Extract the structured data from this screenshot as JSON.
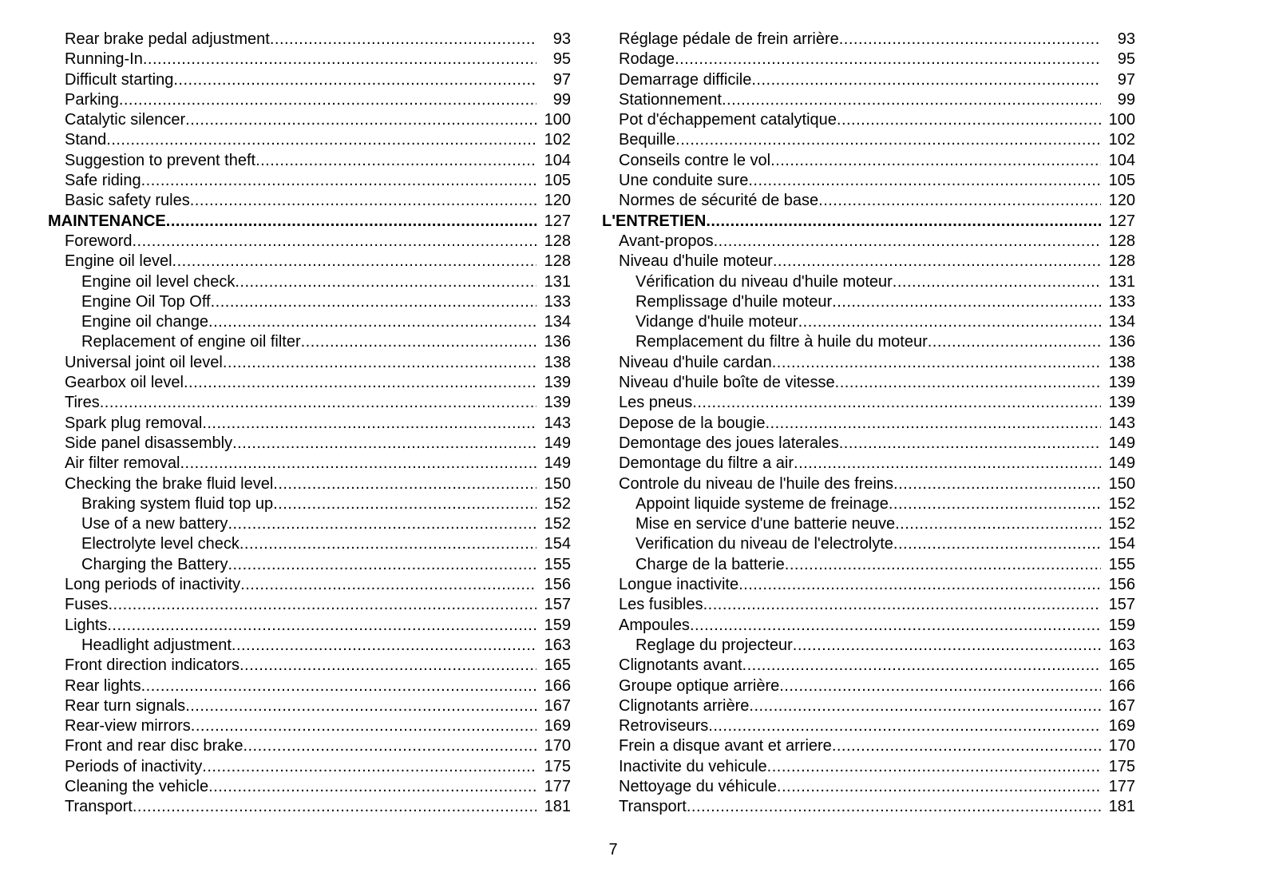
{
  "toc_en": [
    [
      1,
      "Rear brake pedal adjustment",
      "93"
    ],
    [
      1,
      "Running-In",
      "95"
    ],
    [
      1,
      "Difficult starting",
      "97"
    ],
    [
      1,
      "Parking",
      "99"
    ],
    [
      1,
      "Catalytic silencer",
      "100"
    ],
    [
      1,
      "Stand",
      "102"
    ],
    [
      1,
      "Suggestion to prevent theft",
      "104"
    ],
    [
      1,
      "Safe riding",
      "105"
    ],
    [
      1,
      "Basic safety rules",
      "120"
    ],
    [
      0,
      "MAINTENANCE",
      "127"
    ],
    [
      1,
      "Foreword",
      "128"
    ],
    [
      1,
      "Engine oil level",
      "128"
    ],
    [
      2,
      "Engine oil level check",
      "131"
    ],
    [
      2,
      "Engine Oil Top Off",
      "133"
    ],
    [
      2,
      "Engine oil change",
      "134"
    ],
    [
      2,
      "Replacement of engine oil filter",
      "136"
    ],
    [
      1,
      "Universal joint oil level",
      "138"
    ],
    [
      1,
      "Gearbox oil level",
      "139"
    ],
    [
      1,
      "Tires",
      "139"
    ],
    [
      1,
      "Spark plug removal",
      "143"
    ],
    [
      1,
      "Side panel disassembly",
      "149"
    ],
    [
      1,
      "Air filter removal",
      "149"
    ],
    [
      1,
      "Checking the brake fluid level",
      "150"
    ],
    [
      2,
      "Braking system fluid top up",
      "152"
    ],
    [
      2,
      "Use of a new battery",
      "152"
    ],
    [
      2,
      "Electrolyte level check",
      "154"
    ],
    [
      2,
      "Charging the Battery",
      "155"
    ],
    [
      1,
      "Long periods of inactivity",
      "156"
    ],
    [
      1,
      "Fuses",
      "157"
    ],
    [
      1,
      "Lights",
      "159"
    ],
    [
      2,
      "Headlight adjustment",
      "163"
    ],
    [
      1,
      "Front direction indicators",
      "165"
    ],
    [
      1,
      "Rear lights",
      "166"
    ],
    [
      1,
      "Rear turn signals",
      "167"
    ],
    [
      1,
      "Rear-view mirrors",
      "169"
    ],
    [
      1,
      "Front and rear disc brake",
      "170"
    ],
    [
      1,
      "Periods of inactivity",
      "175"
    ],
    [
      1,
      "Cleaning the vehicle",
      "177"
    ],
    [
      1,
      "Transport",
      "181"
    ]
  ],
  "toc_fr": [
    [
      1,
      "Réglage pédale de frein arrière",
      "93"
    ],
    [
      1,
      "Rodage",
      "95"
    ],
    [
      1,
      "Demarrage difficile",
      "97"
    ],
    [
      1,
      "Stationnement",
      "99"
    ],
    [
      1,
      "Pot d'échappement catalytique",
      "100"
    ],
    [
      1,
      "Bequille",
      "102"
    ],
    [
      1,
      "Conseils contre le vol",
      "104"
    ],
    [
      1,
      "Une conduite sure",
      "105"
    ],
    [
      1,
      "Normes de sécurité de base",
      "120"
    ],
    [
      0,
      "L'ENTRETIEN",
      "127"
    ],
    [
      1,
      "Avant-propos",
      "128"
    ],
    [
      1,
      "Niveau d'huile moteur",
      "128"
    ],
    [
      2,
      "Vérification du niveau d'huile moteur",
      "131"
    ],
    [
      2,
      "Remplissage d'huile moteur",
      "133"
    ],
    [
      2,
      "Vidange d'huile moteur",
      "134"
    ],
    [
      2,
      "Remplacement du filtre à huile du moteur",
      "136"
    ],
    [
      1,
      "Niveau d'huile cardan",
      "138"
    ],
    [
      1,
      "Niveau d'huile boîte de vitesse",
      "139"
    ],
    [
      1,
      "Les pneus",
      "139"
    ],
    [
      1,
      "Depose de la bougie",
      "143"
    ],
    [
      1,
      "Demontage des joues laterales",
      "149"
    ],
    [
      1,
      "Demontage du filtre a air",
      "149"
    ],
    [
      1,
      "Controle du niveau de l'huile des freins",
      "150"
    ],
    [
      2,
      "Appoint liquide systeme de freinage",
      "152"
    ],
    [
      2,
      "Mise en service d'une batterie neuve",
      "152"
    ],
    [
      2,
      "Verification du niveau de l'electrolyte",
      "154"
    ],
    [
      2,
      "Charge de la batterie",
      "155"
    ],
    [
      1,
      "Longue inactivite",
      "156"
    ],
    [
      1,
      "Les fusibles",
      "157"
    ],
    [
      1,
      "Ampoules",
      "159"
    ],
    [
      2,
      "Reglage du projecteur",
      "163"
    ],
    [
      1,
      "Clignotants avant",
      "165"
    ],
    [
      1,
      "Groupe optique arrière",
      "166"
    ],
    [
      1,
      "Clignotants arrière",
      "167"
    ],
    [
      1,
      "Retroviseurs",
      "169"
    ],
    [
      1,
      "Frein a disque avant et arriere",
      "170"
    ],
    [
      1,
      "Inactivite du vehicule",
      "175"
    ],
    [
      1,
      "Nettoyage du véhicule",
      "177"
    ],
    [
      1,
      "Transport",
      "181"
    ]
  ],
  "page_number": "7"
}
